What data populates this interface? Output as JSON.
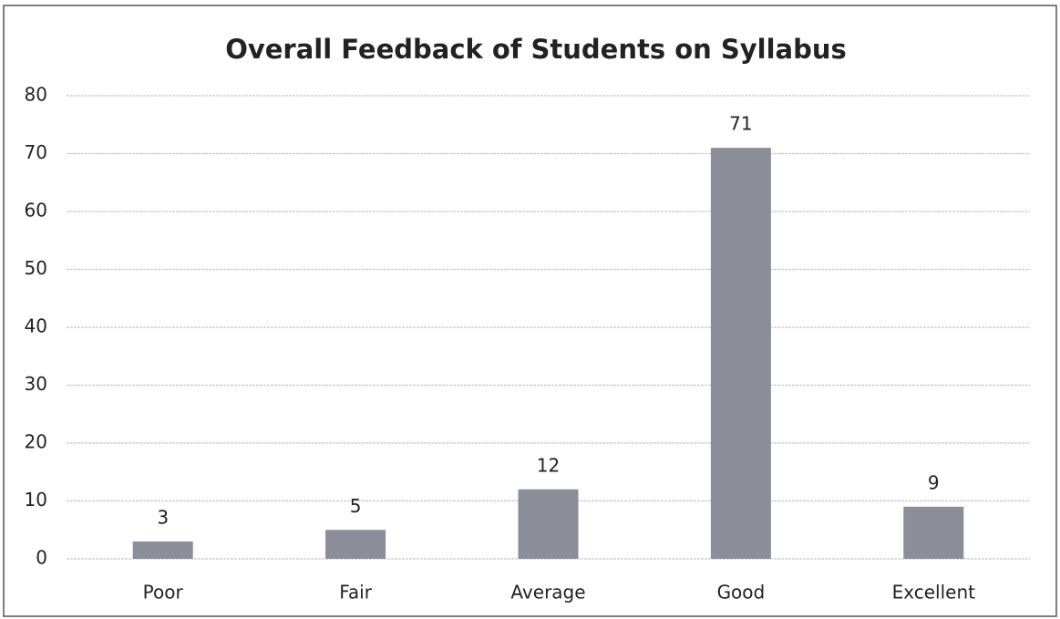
{
  "chart_data": {
    "type": "bar",
    "title": "Overall Feedback of Students on Syllabus",
    "categories": [
      "Poor",
      "Fair",
      "Average",
      "Good",
      "Excellent"
    ],
    "values": [
      3,
      5,
      12,
      71,
      9
    ],
    "color": "#8b8e99",
    "ylim": [
      0,
      80
    ],
    "yticks": [
      0,
      10,
      20,
      30,
      40,
      50,
      60,
      70,
      80
    ],
    "grid": true
  }
}
